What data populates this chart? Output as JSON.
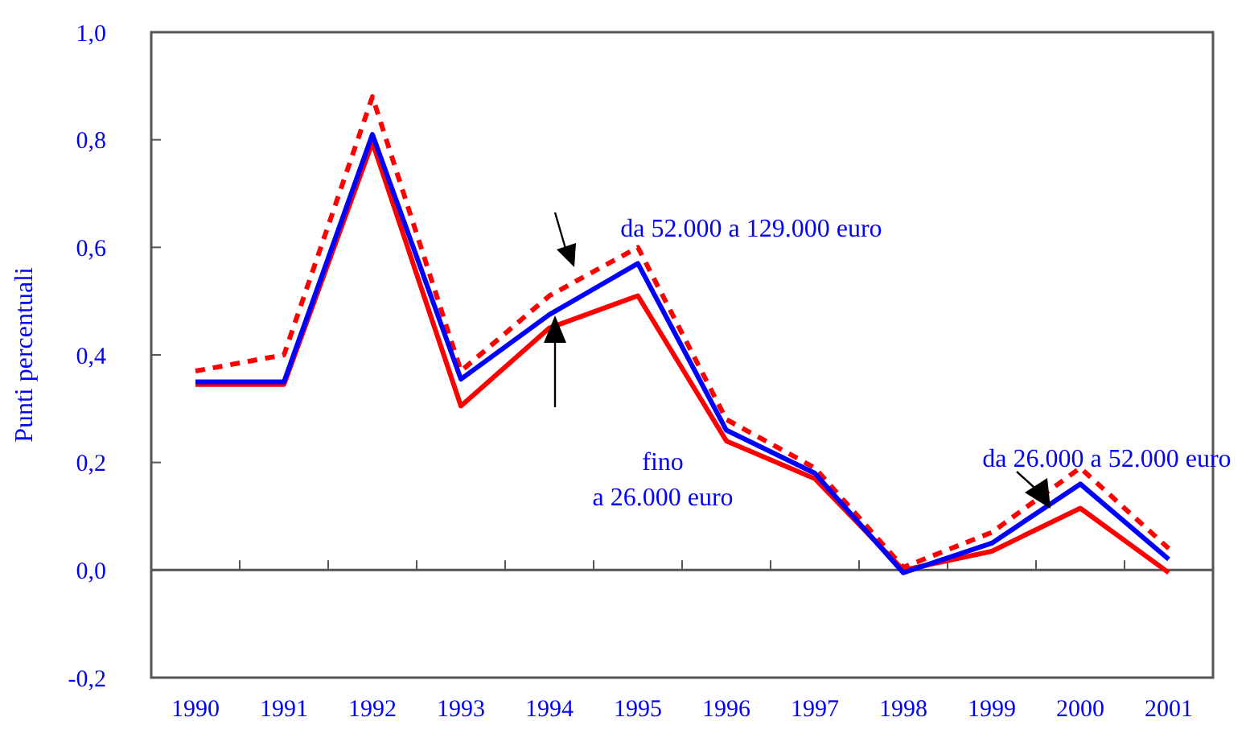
{
  "chart_data": {
    "type": "line",
    "ylabel": "Punti percentuali",
    "categories": [
      "1990",
      "1991",
      "1992",
      "1993",
      "1994",
      "1995",
      "1996",
      "1997",
      "1998",
      "1999",
      "2000",
      "2001"
    ],
    "series": [
      {
        "color": "#ff0000",
        "line_style": "dashed",
        "values": [
          0.37,
          0.4,
          0.88,
          0.37,
          0.51,
          0.6,
          0.28,
          0.19,
          0.005,
          0.07,
          0.19,
          0.04
        ]
      },
      {
        "color": "#ff0000",
        "line_style": "solid",
        "values": [
          0.345,
          0.345,
          0.795,
          0.305,
          0.45,
          0.51,
          0.24,
          0.17,
          0.0,
          0.035,
          0.115,
          -0.005
        ]
      },
      {
        "color": "#0000ff",
        "line_style": "solid",
        "values": [
          0.35,
          0.35,
          0.81,
          0.355,
          0.475,
          0.57,
          0.26,
          0.18,
          -0.005,
          0.05,
          0.16,
          0.02
        ]
      }
    ],
    "ylim": [
      -0.2,
      1.0
    ],
    "yticks": [
      {
        "value": -0.2,
        "label": "-0,2"
      },
      {
        "value": 0,
        "label": "0,0"
      },
      {
        "value": 0.2,
        "label": "0,2"
      },
      {
        "value": 0.4,
        "label": "0,4"
      },
      {
        "value": 0.6,
        "label": "0,6"
      },
      {
        "value": 0.8,
        "label": "0,8"
      },
      {
        "value": 1.0,
        "label": "1,0"
      }
    ],
    "annotations": [
      "da 52.000 a 129.000 euro",
      "fino\na 26.000 euro",
      "da 26.000 a 52.000 euro"
    ],
    "marker": "none"
  }
}
